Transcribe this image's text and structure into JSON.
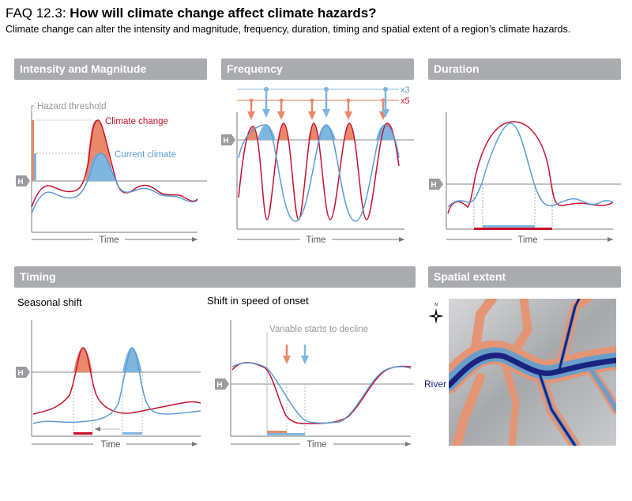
{
  "header": {
    "faq_number": "FAQ 12.3:",
    "question": "How will climate change affect climate hazards?",
    "subtitle": "Climate change can alter the intensity and magnitude, frequency, duration, timing and spatial extent of a region’s climate hazards."
  },
  "panels": {
    "intensity": "Intensity and Magnitude",
    "frequency": "Frequency",
    "duration": "Duration",
    "timing": "Timing",
    "spatial": "Spatial extent"
  },
  "sublabels": {
    "seasonal": "Seasonal shift",
    "onset": "Shift in speed of onset"
  },
  "labels": {
    "hazard_threshold": "Hazard threshold",
    "climate_change": "Climate change",
    "current_climate": "Current climate",
    "time": "Time",
    "h_marker": "H",
    "freq_current": "x3",
    "freq_change": "x5",
    "variable_decline": "Variable starts to decline",
    "river": "River",
    "compass_n": "N"
  },
  "colors": {
    "climate_change": "#c8102e",
    "current_climate": "#5b9bd5",
    "climate_change_fill": "#e8896a",
    "current_climate_fill": "#7fb6e0",
    "panel_bar": "#a9abae",
    "river": "#1a237e"
  }
}
